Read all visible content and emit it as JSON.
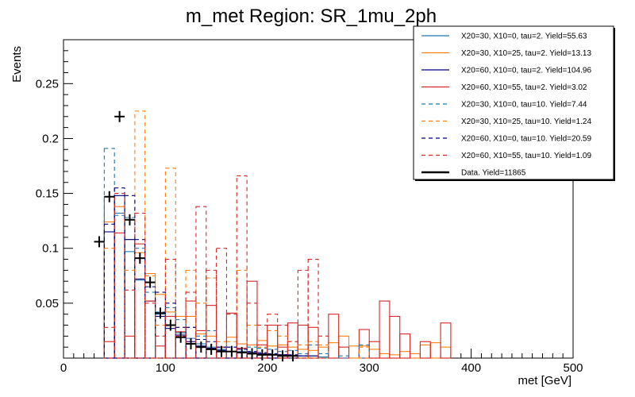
{
  "chart_data": {
    "type": "histogram",
    "title": "m_met Region: SR_1mu_2ph",
    "xlabel": "met [GeV]",
    "ylabel": "Events",
    "xlim": [
      0,
      500
    ],
    "ylim": [
      0,
      0.29
    ],
    "grid": false,
    "legend_position": "top-right",
    "bin_width": 10,
    "x_ticks": [
      0,
      100,
      200,
      300,
      400,
      500
    ],
    "y_ticks": [
      0.05,
      0.1,
      0.15,
      0.2,
      0.25
    ],
    "y_tick_labels": [
      "0.05",
      "0.1",
      "0.15",
      "0.2",
      "0.25"
    ],
    "series": [
      {
        "name": "X20=30, X10=0, tau=2. Yield=55.63",
        "color": "#1f77b4",
        "style": "solid",
        "bins": [
          [
            40,
            0.147
          ],
          [
            50,
            0.132
          ],
          [
            60,
            0.097
          ],
          [
            70,
            0.071
          ],
          [
            80,
            0.052
          ],
          [
            90,
            0.04
          ],
          [
            100,
            0.03
          ],
          [
            110,
            0.023
          ],
          [
            120,
            0.018
          ],
          [
            130,
            0.013
          ],
          [
            140,
            0.01
          ],
          [
            150,
            0.008
          ],
          [
            160,
            0.006
          ],
          [
            170,
            0.006
          ],
          [
            180,
            0.005
          ],
          [
            190,
            0.004
          ],
          [
            200,
            0.003
          ],
          [
            210,
            0.003
          ],
          [
            220,
            0.002
          ],
          [
            230,
            0.002
          ],
          [
            240,
            0.002
          ],
          [
            250,
            0.001
          ]
        ]
      },
      {
        "name": "X20=30, X10=25, tau=2. Yield=13.13",
        "color": "#ff7f0e",
        "style": "solid",
        "bins": [
          [
            40,
            0.124
          ],
          [
            50,
            0.138
          ],
          [
            60,
            0.108
          ],
          [
            70,
            0.096
          ],
          [
            80,
            0.077
          ],
          [
            90,
            0.058
          ],
          [
            100,
            0.042
          ],
          [
            110,
            0.038
          ],
          [
            120,
            0.038
          ],
          [
            130,
            0.022
          ],
          [
            140,
            0.02
          ],
          [
            150,
            0.01
          ],
          [
            160,
            0.019
          ],
          [
            170,
            0.013
          ],
          [
            180,
            0.012
          ],
          [
            190,
            0.016
          ],
          [
            200,
            0.011
          ],
          [
            210,
            0.012
          ],
          [
            220,
            0.01
          ],
          [
            230,
            0.008
          ],
          [
            240,
            0.007
          ],
          [
            250,
            0.01
          ],
          [
            260,
            0.014
          ],
          [
            270,
            0.02
          ],
          [
            280,
            0.011
          ],
          [
            290,
            0.011
          ],
          [
            300,
            0.008
          ],
          [
            310,
            0.004
          ],
          [
            320,
            0.003
          ],
          [
            330,
            0.006
          ],
          [
            340,
            0.004
          ],
          [
            350,
            0.012
          ],
          [
            360,
            0.014
          ],
          [
            370,
            0.01
          ]
        ]
      },
      {
        "name": "X20=60, X10=0, tau=2. Yield=104.96",
        "color": "#000080",
        "style": "solid",
        "bins": [
          [
            40,
            0.115
          ],
          [
            50,
            0.148
          ],
          [
            60,
            0.108
          ],
          [
            70,
            0.072
          ],
          [
            80,
            0.052
          ],
          [
            90,
            0.038
          ],
          [
            100,
            0.027
          ],
          [
            110,
            0.021
          ],
          [
            120,
            0.015
          ],
          [
            130,
            0.011
          ],
          [
            140,
            0.009
          ],
          [
            150,
            0.007
          ],
          [
            160,
            0.006
          ],
          [
            170,
            0.005
          ],
          [
            180,
            0.005
          ],
          [
            190,
            0.004
          ],
          [
            200,
            0.003
          ],
          [
            210,
            0.003
          ],
          [
            220,
            0.002
          ],
          [
            230,
            0.002
          ],
          [
            240,
            0.002
          ]
        ]
      },
      {
        "name": "X20=60, X10=55, tau=2. Yield=3.02",
        "color": "#d62728",
        "style": "solid",
        "bins": [
          [
            40,
            0.015
          ],
          [
            50,
            0.114
          ],
          [
            60,
            0.02
          ],
          [
            70,
            0.104
          ],
          [
            80,
            0.052
          ],
          [
            90,
            0.011
          ],
          [
            100,
            0.038
          ],
          [
            110,
            0.024
          ],
          [
            120,
            0.052
          ],
          [
            130,
            0.025
          ],
          [
            140,
            0.048
          ],
          [
            150,
            0.01
          ],
          [
            160,
            0.041
          ],
          [
            170,
            0.009
          ],
          [
            180,
            0.07
          ],
          [
            190,
            0.012
          ],
          [
            200,
            0.03
          ],
          [
            210,
            0.01
          ],
          [
            220,
            0.032
          ],
          [
            230,
            0.03
          ],
          [
            240,
            0.028
          ],
          [
            250,
            0.0
          ],
          [
            260,
            0.04
          ],
          [
            270,
            0.01
          ],
          [
            280,
            0.0
          ],
          [
            290,
            0.026
          ],
          [
            300,
            0.015
          ],
          [
            310,
            0.052
          ],
          [
            320,
            0.038
          ],
          [
            330,
            0.022
          ],
          [
            340,
            0.0
          ],
          [
            350,
            0.015
          ],
          [
            360,
            0.0
          ],
          [
            370,
            0.032
          ]
        ]
      },
      {
        "name": "X20=30, X10=0, tau=10. Yield=7.44",
        "color": "#1f77b4",
        "style": "dashed",
        "bins": [
          [
            40,
            0.191
          ],
          [
            50,
            0.13
          ],
          [
            60,
            0.128
          ],
          [
            70,
            0.1
          ],
          [
            80,
            0.06
          ],
          [
            90,
            0.042
          ],
          [
            100,
            0.046
          ],
          [
            110,
            0.035
          ],
          [
            120,
            0.028
          ],
          [
            130,
            0.02
          ],
          [
            140,
            0.025
          ],
          [
            150,
            0.01
          ],
          [
            160,
            0.01
          ],
          [
            170,
            0.008
          ],
          [
            180,
            0.01
          ],
          [
            190,
            0.009
          ],
          [
            200,
            0.008
          ],
          [
            210,
            0.006
          ],
          [
            220,
            0.007
          ],
          [
            230,
            0.004
          ],
          [
            240,
            0.012
          ],
          [
            250,
            0.004
          ],
          [
            260,
            0.0
          ],
          [
            270,
            0.002
          ],
          [
            280,
            0.0
          ],
          [
            290,
            0.012
          ],
          [
            300,
            0.0
          ]
        ]
      },
      {
        "name": "X20=30, X10=25, tau=10. Yield=1.24",
        "color": "#ff7f0e",
        "style": "dashed",
        "bins": [
          [
            40,
            0.1
          ],
          [
            50,
            0.15
          ],
          [
            60,
            0.08
          ],
          [
            70,
            0.225
          ],
          [
            80,
            0.075
          ],
          [
            90,
            0.03
          ],
          [
            100,
            0.173
          ],
          [
            110,
            0.028
          ],
          [
            120,
            0.08
          ],
          [
            130,
            0.05
          ],
          [
            140,
            0.073
          ],
          [
            150,
            0.015
          ],
          [
            160,
            0.015
          ],
          [
            170,
            0.08
          ],
          [
            180,
            0.03
          ],
          [
            190,
            0.01
          ],
          [
            200,
            0.025
          ],
          [
            210,
            0.02
          ],
          [
            220,
            0.015
          ],
          [
            230,
            0.012
          ],
          [
            240,
            0.015
          ],
          [
            250,
            0.012
          ],
          [
            260,
            0.0
          ],
          [
            270,
            0.0
          ],
          [
            280,
            0.0
          ],
          [
            290,
            0.01
          ],
          [
            300,
            0.0
          ]
        ]
      },
      {
        "name": "X20=60, X10=0, tau=10. Yield=20.59",
        "color": "#000080",
        "style": "dashed",
        "bins": [
          [
            40,
            0.122
          ],
          [
            50,
            0.155
          ],
          [
            60,
            0.148
          ],
          [
            70,
            0.108
          ],
          [
            80,
            0.065
          ],
          [
            90,
            0.06
          ],
          [
            100,
            0.05
          ],
          [
            110,
            0.028
          ],
          [
            120,
            0.028
          ],
          [
            130,
            0.017
          ],
          [
            140,
            0.015
          ],
          [
            150,
            0.01
          ],
          [
            160,
            0.01
          ],
          [
            170,
            0.008
          ],
          [
            180,
            0.006
          ],
          [
            190,
            0.005
          ],
          [
            200,
            0.004
          ],
          [
            210,
            0.003
          ],
          [
            220,
            0.003
          ],
          [
            230,
            0.002
          ]
        ]
      },
      {
        "name": "X20=60, X10=55, tau=10. Yield=1.09",
        "color": "#d62728",
        "style": "dashed",
        "bins": [
          [
            40,
            0.028
          ],
          [
            50,
            0.15
          ],
          [
            60,
            0.062
          ],
          [
            70,
            0.132
          ],
          [
            80,
            0.05
          ],
          [
            90,
            0.02
          ],
          [
            100,
            0.09
          ],
          [
            110,
            0.02
          ],
          [
            120,
            0.06
          ],
          [
            130,
            0.138
          ],
          [
            140,
            0.08
          ],
          [
            150,
            0.1
          ],
          [
            160,
            0.04
          ],
          [
            170,
            0.166
          ],
          [
            180,
            0.05
          ],
          [
            190,
            0.03
          ],
          [
            200,
            0.04
          ],
          [
            210,
            0.03
          ],
          [
            220,
            0.015
          ],
          [
            230,
            0.08
          ],
          [
            240,
            0.09
          ],
          [
            250,
            0.02
          ]
        ]
      },
      {
        "name": "Data. Yield=11865",
        "color": "#000000",
        "style": "points",
        "points": [
          [
            35,
            0.106
          ],
          [
            45,
            0.147
          ],
          [
            55,
            0.22
          ],
          [
            65,
            0.126
          ],
          [
            75,
            0.091
          ],
          [
            85,
            0.069
          ],
          [
            95,
            0.041
          ],
          [
            105,
            0.03
          ],
          [
            115,
            0.019
          ],
          [
            125,
            0.013
          ],
          [
            135,
            0.01
          ],
          [
            145,
            0.008
          ],
          [
            155,
            0.006
          ],
          [
            165,
            0.006
          ],
          [
            175,
            0.005
          ],
          [
            185,
            0.004
          ],
          [
            195,
            0.003
          ],
          [
            205,
            0.003
          ],
          [
            215,
            0.002
          ],
          [
            225,
            0.002
          ]
        ]
      }
    ]
  }
}
